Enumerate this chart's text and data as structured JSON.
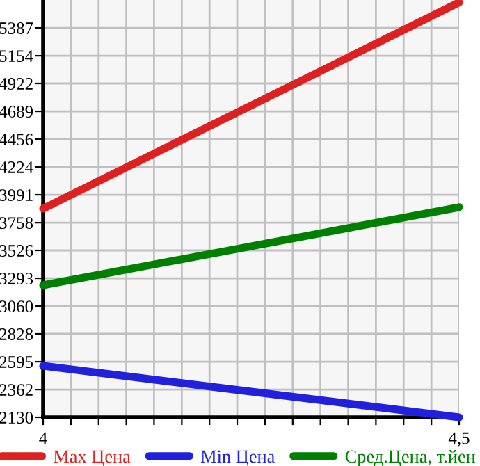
{
  "chart_data": {
    "type": "line",
    "x": [
      4,
      4.5
    ],
    "series": [
      {
        "name": "Max Цена",
        "color": "#dd2020",
        "values": [
          3875,
          5600
        ]
      },
      {
        "name": "Min Цена",
        "color": "#2020dd",
        "values": [
          2560,
          2130
        ]
      },
      {
        "name": "Сред.Цена, т.йен",
        "color": "#008000",
        "values": [
          3235,
          3887
        ]
      }
    ],
    "xlim": [
      4,
      4.5
    ],
    "xticks": [
      {
        "value": 4,
        "label": "4"
      },
      {
        "value": 4.0333,
        "label": null
      },
      {
        "value": 4.0667,
        "label": null
      },
      {
        "value": 4.1,
        "label": null
      },
      {
        "value": 4.1333,
        "label": null
      },
      {
        "value": 4.1667,
        "label": null
      },
      {
        "value": 4.2,
        "label": null
      },
      {
        "value": 4.2333,
        "label": null
      },
      {
        "value": 4.2667,
        "label": null
      },
      {
        "value": 4.3,
        "label": null
      },
      {
        "value": 4.3333,
        "label": null
      },
      {
        "value": 4.3667,
        "label": null
      },
      {
        "value": 4.4,
        "label": null
      },
      {
        "value": 4.4333,
        "label": null
      },
      {
        "value": 4.4667,
        "label": null
      },
      {
        "value": 4.5,
        "label": "4,5"
      }
    ],
    "ylim": [
      2130,
      5620
    ],
    "yticks": [
      2130,
      2362,
      2595,
      2828,
      3060,
      3293,
      3526,
      3758,
      3991,
      4224,
      4456,
      4689,
      4922,
      5154,
      5387
    ],
    "grid": true,
    "legend": "bottom",
    "marker": "none",
    "line_style": "solid"
  }
}
